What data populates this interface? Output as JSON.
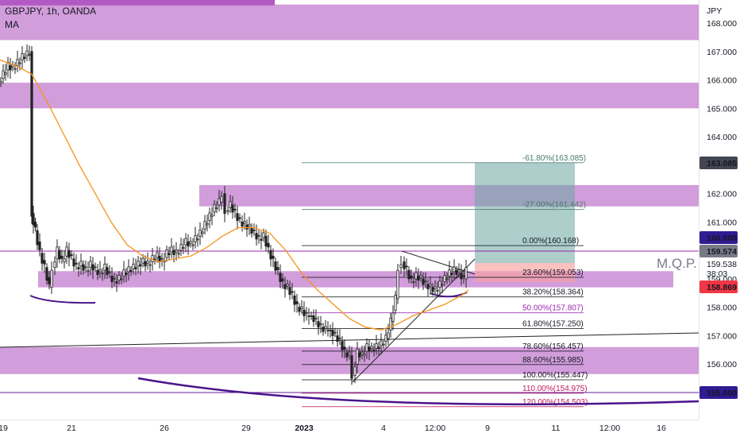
{
  "header": {
    "symbol_line": "GBPJPY, 1h, OANDA",
    "indicator": "MA"
  },
  "annotation_text": "M.Q.P.",
  "chart_data": {
    "type": "candlestick",
    "symbol": "GBPJPY",
    "timeframe": "1h",
    "broker": "OANDA",
    "currency": "JPY",
    "ylim": [
      154.25,
      168.4
    ],
    "y_ticks": [
      155.0,
      156.0,
      157.0,
      158.0,
      159.0,
      160.0,
      161.0,
      162.0,
      163.0,
      164.0,
      165.0,
      166.0,
      167.0,
      168.0
    ],
    "x_ticks": [
      "19",
      "21",
      "26",
      "29",
      "2023",
      "4",
      "12:00",
      "9",
      "11",
      "12:00",
      "16"
    ],
    "price_labels": [
      {
        "text": "163.085",
        "bg": "#434651",
        "fg": "#ffffff"
      },
      {
        "text": "160.000",
        "bg": "#311b92",
        "fg": "#ffffff"
      },
      {
        "text": "159.574",
        "bg": "#787b86",
        "fg": "#ffffff"
      },
      {
        "text": "159.538",
        "bg": "none",
        "fg": "#131722"
      },
      {
        "text": "38:03",
        "bg": "none",
        "fg": "#131722"
      },
      {
        "text": "158.869",
        "bg": "#f23645",
        "fg": "#ffffff"
      },
      {
        "text": "155.000",
        "bg": "#311b92",
        "fg": "#ffffff"
      }
    ],
    "zones": [
      {
        "low": 167.4,
        "high": 168.65
      },
      {
        "low": 165.0,
        "high": 165.9
      },
      {
        "low": 161.55,
        "high": 162.3
      },
      {
        "low": 158.7,
        "high": 159.27
      },
      {
        "low": 155.65,
        "high": 156.6
      }
    ],
    "fib_levels": [
      {
        "label": "-61.80%(163.085)",
        "price": 163.085,
        "color": "#4a7a6a"
      },
      {
        "label": "-27.00%(161.442)",
        "price": 161.442,
        "color": "#4a7a6a"
      },
      {
        "label": "0.00%(160.168)",
        "price": 160.168,
        "color": "#131722"
      },
      {
        "label": "23.60%(159.053)",
        "price": 159.053,
        "color": "#131722"
      },
      {
        "label": "38.20%(158.364)",
        "price": 158.364,
        "color": "#131722"
      },
      {
        "label": "50.00%(157.807)",
        "price": 157.807,
        "color": "#9c27b0"
      },
      {
        "label": "61.80%(157.250)",
        "price": 157.25,
        "color": "#131722"
      },
      {
        "label": "78.60%(156.457)",
        "price": 156.457,
        "color": "#131722"
      },
      {
        "label": "88.60%(155.985)",
        "price": 155.985,
        "color": "#131722"
      },
      {
        "label": "100.00%(155.447)",
        "price": 155.447,
        "color": "#131722"
      },
      {
        "label": "110.00%(154.975)",
        "price": 154.975,
        "color": "#c2185b"
      },
      {
        "label": "120.00%(154.503)",
        "price": 154.503,
        "color": "#c2185b"
      }
    ],
    "close_path": [
      [
        0,
        165.9
      ],
      [
        6,
        166.2
      ],
      [
        12,
        166.5
      ],
      [
        18,
        166.4
      ],
      [
        24,
        166.6
      ],
      [
        30,
        166.8
      ],
      [
        36,
        166.9
      ],
      [
        39,
        167.0
      ],
      [
        41,
        161.3
      ],
      [
        46,
        160.7
      ],
      [
        52,
        159.9
      ],
      [
        58,
        159.4
      ],
      [
        64,
        158.7
      ],
      [
        68,
        159.4
      ],
      [
        74,
        160.0
      ],
      [
        80,
        159.6
      ],
      [
        86,
        160.0
      ],
      [
        92,
        159.7
      ],
      [
        98,
        159.4
      ],
      [
        104,
        159.5
      ],
      [
        110,
        159.3
      ],
      [
        116,
        159.5
      ],
      [
        122,
        159.3
      ],
      [
        128,
        159.2
      ],
      [
        134,
        159.4
      ],
      [
        140,
        159.1
      ],
      [
        146,
        158.9
      ],
      [
        152,
        159.0
      ],
      [
        158,
        159.2
      ],
      [
        164,
        159.3
      ],
      [
        170,
        159.4
      ],
      [
        176,
        159.5
      ],
      [
        182,
        159.6
      ],
      [
        188,
        159.5
      ],
      [
        194,
        159.7
      ],
      [
        200,
        159.8
      ],
      [
        206,
        159.6
      ],
      [
        212,
        159.9
      ],
      [
        218,
        160.0
      ],
      [
        224,
        159.9
      ],
      [
        230,
        160.1
      ],
      [
        236,
        160.3
      ],
      [
        242,
        160.2
      ],
      [
        248,
        160.4
      ],
      [
        254,
        160.6
      ],
      [
        260,
        160.9
      ],
      [
        266,
        161.2
      ],
      [
        272,
        161.5
      ],
      [
        278,
        161.7
      ],
      [
        282,
        162.0
      ],
      [
        286,
        161.4
      ],
      [
        292,
        161.6
      ],
      [
        298,
        161.3
      ],
      [
        304,
        161.0
      ],
      [
        310,
        160.9
      ],
      [
        316,
        160.8
      ],
      [
        322,
        160.6
      ],
      [
        328,
        160.4
      ],
      [
        334,
        160.5
      ],
      [
        340,
        160.0
      ],
      [
        346,
        159.6
      ],
      [
        352,
        159.2
      ],
      [
        358,
        158.8
      ],
      [
        364,
        158.7
      ],
      [
        370,
        158.4
      ],
      [
        376,
        158.0
      ],
      [
        382,
        157.9
      ],
      [
        388,
        157.7
      ],
      [
        394,
        157.7
      ],
      [
        400,
        157.5
      ],
      [
        406,
        157.3
      ],
      [
        412,
        157.2
      ],
      [
        418,
        157.2
      ],
      [
        424,
        157.0
      ],
      [
        430,
        156.8
      ],
      [
        436,
        156.4
      ],
      [
        442,
        156.3
      ],
      [
        446,
        155.6
      ],
      [
        452,
        156.4
      ],
      [
        458,
        156.3
      ],
      [
        464,
        156.6
      ],
      [
        470,
        156.5
      ],
      [
        476,
        156.6
      ],
      [
        482,
        156.7
      ],
      [
        488,
        156.9
      ],
      [
        494,
        157.5
      ],
      [
        500,
        158.3
      ],
      [
        504,
        159.4
      ],
      [
        508,
        159.6
      ],
      [
        514,
        159.3
      ],
      [
        520,
        158.9
      ],
      [
        526,
        159.1
      ],
      [
        532,
        159.0
      ],
      [
        538,
        158.8
      ],
      [
        544,
        158.7
      ],
      [
        550,
        158.6
      ],
      [
        556,
        158.8
      ],
      [
        562,
        159.0
      ],
      [
        568,
        159.2
      ],
      [
        574,
        159.3
      ],
      [
        580,
        159.2
      ],
      [
        586,
        159.0
      ],
      [
        590,
        159.5
      ]
    ],
    "ma_path": [
      [
        0,
        166.7
      ],
      [
        20,
        166.5
      ],
      [
        40,
        166.2
      ],
      [
        60,
        165.2
      ],
      [
        80,
        164.1
      ],
      [
        100,
        163.0
      ],
      [
        120,
        162.0
      ],
      [
        140,
        161.0
      ],
      [
        160,
        160.2
      ],
      [
        180,
        159.8
      ],
      [
        200,
        159.6
      ],
      [
        220,
        159.7
      ],
      [
        240,
        159.8
      ],
      [
        260,
        160.1
      ],
      [
        280,
        160.5
      ],
      [
        300,
        160.8
      ],
      [
        320,
        160.8
      ],
      [
        340,
        160.6
      ],
      [
        360,
        160.0
      ],
      [
        380,
        159.2
      ],
      [
        400,
        158.6
      ],
      [
        420,
        158.1
      ],
      [
        440,
        157.6
      ],
      [
        460,
        157.3
      ],
      [
        480,
        157.2
      ],
      [
        500,
        157.4
      ],
      [
        520,
        157.7
      ],
      [
        540,
        157.9
      ],
      [
        560,
        158.1
      ],
      [
        580,
        158.4
      ],
      [
        590,
        158.6
      ]
    ]
  }
}
